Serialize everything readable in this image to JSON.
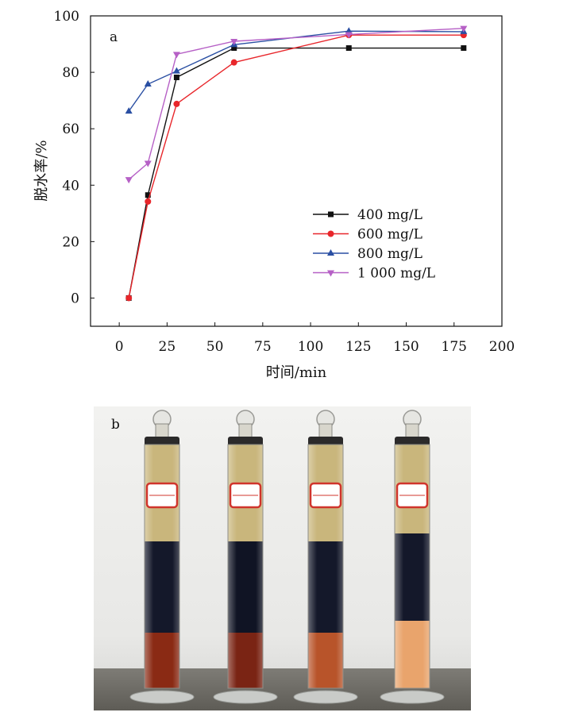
{
  "chart_data": {
    "type": "line",
    "panel_label": "a",
    "xlabel": "时间/min",
    "ylabel": "脱水率/%",
    "xlim": [
      -15,
      200
    ],
    "ylim": [
      -10,
      100
    ],
    "xticks": [
      0,
      25,
      50,
      75,
      100,
      125,
      150,
      175,
      200
    ],
    "yticks": [
      0,
      20,
      40,
      60,
      80,
      100
    ],
    "x": [
      5,
      15,
      30,
      60,
      120,
      180
    ],
    "legend_position": "center-right",
    "series": [
      {
        "name": "400 mg/L",
        "color": "#111111",
        "marker": "square",
        "values": [
          0,
          36.5,
          78.2,
          88.6,
          88.6,
          88.6
        ]
      },
      {
        "name": "600 mg/L",
        "color": "#e8262b",
        "marker": "circle",
        "values": [
          0,
          34.2,
          68.8,
          83.5,
          93.2,
          93.2
        ]
      },
      {
        "name": "800 mg/L",
        "color": "#2a4fa3",
        "marker": "triangle-up",
        "values": [
          66.2,
          75.8,
          80.4,
          89.8,
          94.6,
          94.4
        ]
      },
      {
        "name": "1 000 mg/L",
        "color": "#b660c6",
        "marker": "triangle-down",
        "values": [
          42.0,
          47.8,
          86.4,
          91.0,
          93.4,
          95.6
        ]
      }
    ]
  },
  "photo": {
    "panel_label": "b",
    "cylinders": [
      {
        "bottom_color": "#8a2a14",
        "middle_color": "#14182a"
      },
      {
        "bottom_color": "#7a2414",
        "middle_color": "#101424"
      },
      {
        "bottom_color": "#b8542a",
        "middle_color": "#14182a"
      },
      {
        "bottom_color": "#e9a46c",
        "middle_color": "#14182a"
      }
    ]
  }
}
